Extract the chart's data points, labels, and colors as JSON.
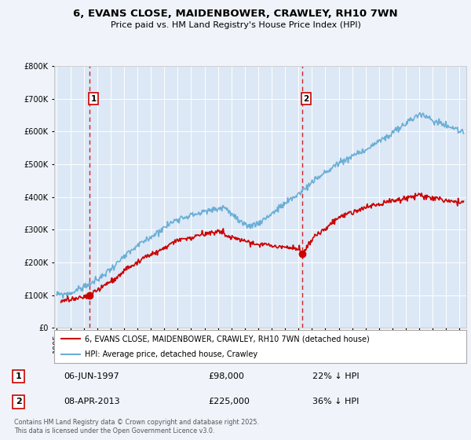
{
  "title_line1": "6, EVANS CLOSE, MAIDENBOWER, CRAWLEY, RH10 7WN",
  "title_line2": "Price paid vs. HM Land Registry's House Price Index (HPI)",
  "legend_line1": "6, EVANS CLOSE, MAIDENBOWER, CRAWLEY, RH10 7WN (detached house)",
  "legend_line2": "HPI: Average price, detached house, Crawley",
  "sale1_label": "1",
  "sale1_date": "06-JUN-1997",
  "sale1_price": "£98,000",
  "sale1_hpi": "22% ↓ HPI",
  "sale1_year": 1997.43,
  "sale1_value": 98000,
  "sale2_label": "2",
  "sale2_date": "08-APR-2013",
  "sale2_price": "£225,000",
  "sale2_hpi": "36% ↓ HPI",
  "sale2_year": 2013.27,
  "sale2_value": 225000,
  "footer": "Contains HM Land Registry data © Crown copyright and database right 2025.\nThis data is licensed under the Open Government Licence v3.0.",
  "hpi_color": "#6baed6",
  "sold_color": "#cc0000",
  "vline_color": "#cc0000",
  "bg_color": "#dce8f5",
  "fig_bg_color": "#f0f4fa",
  "ylim_min": 0,
  "ylim_max": 800000,
  "yticks": [
    0,
    100000,
    200000,
    300000,
    400000,
    500000,
    600000,
    700000,
    800000
  ],
  "xlim_min": 1994.8,
  "xlim_max": 2025.5
}
